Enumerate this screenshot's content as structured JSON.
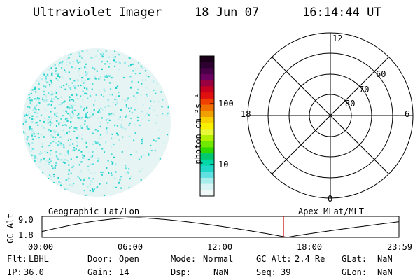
{
  "header": {
    "instrument": "Ultraviolet Imager",
    "date": "18 Jun 07",
    "time": "16:14:44 UT"
  },
  "colorbar": {
    "unit_label": "photon cm⁻²s⁻¹",
    "ticks": [
      "100",
      "10"
    ],
    "colors": [
      "#1a0018",
      "#2d0030",
      "#4a0048",
      "#6b0060",
      "#9a0040",
      "#c80020",
      "#e01010",
      "#f04000",
      "#f07000",
      "#f0a000",
      "#f8d000",
      "#f8f000",
      "#e8f838",
      "#b0f000",
      "#70e800",
      "#30d800",
      "#00c870",
      "#00d8a8",
      "#20d8c8",
      "#60e0e0",
      "#a8ecec",
      "#d8f4f4",
      "#f0f8f8"
    ],
    "accent_image": "#38d8d0"
  },
  "polar": {
    "mlt_labels": {
      "top": "12",
      "left": "18",
      "right": "6",
      "bottom": "0"
    },
    "lat_labels": [
      "60",
      "70",
      "80"
    ]
  },
  "timeline": {
    "axis_label": "GC Alt",
    "y_ticks": [
      "9.0",
      "1.8"
    ],
    "left_title": "Geographic Lat/Lon",
    "right_title": "Apex MLat/MLT",
    "x_ticks": [
      "00:00",
      "06:00",
      "12:00",
      "18:00",
      "23:59"
    ],
    "marker_time": "16:14",
    "marker_color": "#cc0000"
  },
  "status": {
    "flt_label": "Flt:",
    "flt_value": "LBHL",
    "ip_label": "IP:",
    "ip_value": "36.0",
    "door_label": "Door:",
    "door_value": "Open",
    "gain_label": "Gain:",
    "gain_value": "14",
    "mode_label": "Mode:",
    "mode_value": "Normal",
    "dsp_label": "Dsp:",
    "dsp_value": "NaN",
    "gcalt_label": "GC Alt:",
    "gcalt_value": "2.4 Re",
    "seq_label": "Seq:",
    "seq_value": "39",
    "glat_label": "GLat:",
    "glat_value": "NaN",
    "glon_label": "GLon:",
    "glon_value": "NaN"
  }
}
